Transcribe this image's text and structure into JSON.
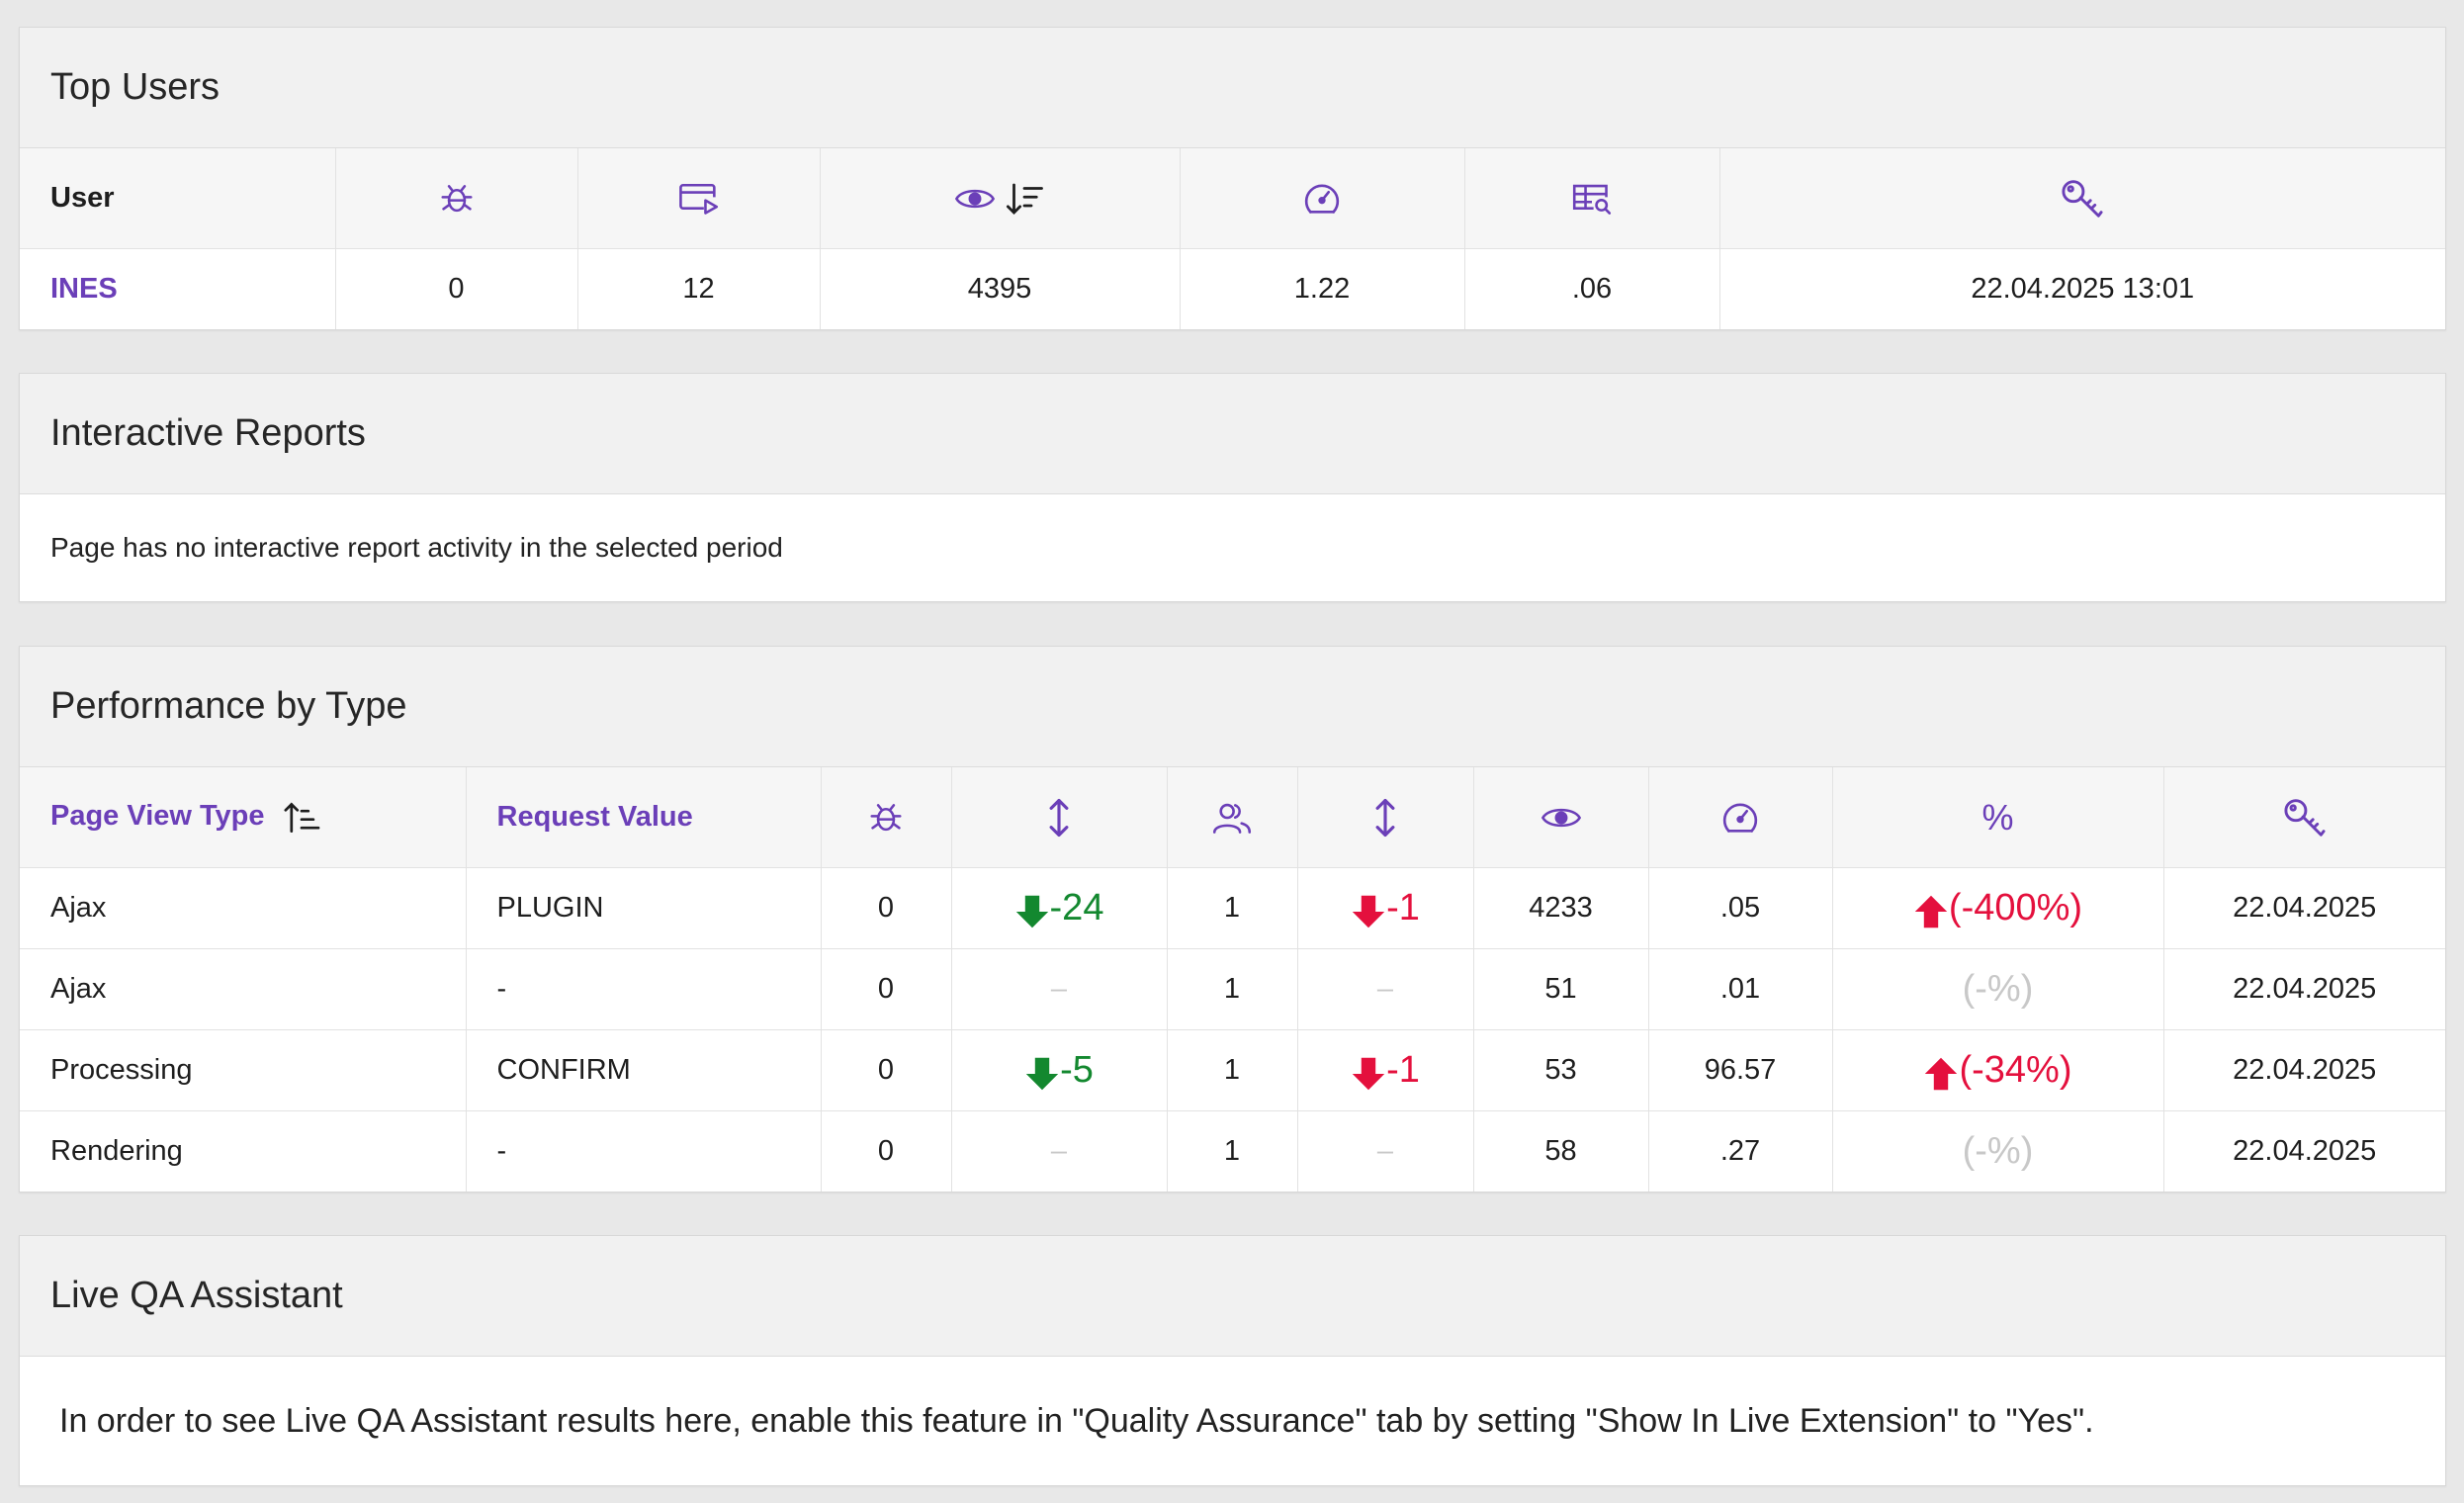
{
  "top_users": {
    "title": "Top Users",
    "header_user": "User",
    "row": {
      "user": "INES",
      "errors": "0",
      "sessions": "12",
      "views": "4395",
      "load_time": "1.22",
      "db_time": ".06",
      "last_login": "22.04.2025 13:01"
    },
    "icons": [
      "bug-icon",
      "window-play-icon",
      "eye-icon",
      "sort-desc-icon",
      "speedometer-icon",
      "table-search-icon",
      "key-icon"
    ]
  },
  "interactive_reports": {
    "title": "Interactive Reports",
    "message": "Page has no interactive report activity in the selected period"
  },
  "performance": {
    "title": "Performance by Type",
    "col_page_view_type": "Page View Type",
    "col_request_value": "Request Value",
    "col_percent": "%",
    "rows": [
      {
        "type": "Ajax",
        "request": "PLUGIN",
        "errors": "0",
        "errors_delta": "-24",
        "users": "1",
        "users_delta": "-1",
        "views": "4233",
        "time": ".05",
        "pct": "(-400%)",
        "date": "22.04.2025"
      },
      {
        "type": "Ajax",
        "request": "-",
        "errors": "0",
        "errors_delta": "–",
        "users": "1",
        "users_delta": "–",
        "views": "51",
        "time": ".01",
        "pct": "(-%)",
        "date": "22.04.2025"
      },
      {
        "type": "Processing",
        "request": "CONFIRM",
        "errors": "0",
        "errors_delta": "-5",
        "users": "1",
        "users_delta": "-1",
        "views": "53",
        "time": "96.57",
        "pct": "(-34%)",
        "date": "22.04.2025"
      },
      {
        "type": "Rendering",
        "request": "-",
        "errors": "0",
        "errors_delta": "–",
        "users": "1",
        "users_delta": "–",
        "views": "58",
        "time": ".27",
        "pct": "(-%)",
        "date": "22.04.2025"
      }
    ],
    "colors": {
      "accent": "#6b3fb8",
      "positive": "#13882f",
      "negative": "#e4103d",
      "muted": "#c8c8c8"
    }
  },
  "qa": {
    "title": "Live QA Assistant",
    "message": "In order to see Live QA Assistant results here, enable this feature in \"Quality Assurance\" tab by setting \"Show In Live Extension\" to \"Yes\"."
  }
}
